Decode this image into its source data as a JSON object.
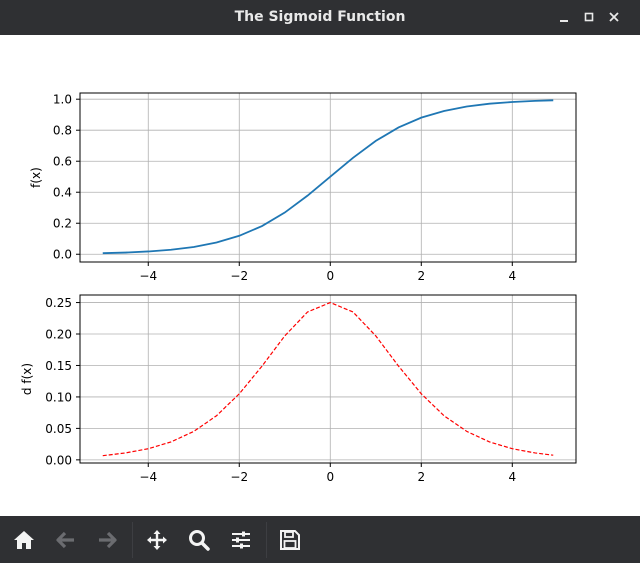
{
  "window": {
    "title": "The Sigmoid Function",
    "minimize_icon": "minimize-icon",
    "maximize_icon": "maximize-icon",
    "close_icon": "close-icon"
  },
  "toolbar": {
    "buttons": [
      {
        "name": "home-button",
        "icon": "home-icon"
      },
      {
        "name": "back-button",
        "icon": "arrow-left-icon"
      },
      {
        "name": "forward-button",
        "icon": "arrow-right-icon"
      },
      {
        "name": "pan-button",
        "icon": "move-icon"
      },
      {
        "name": "zoom-button",
        "icon": "magnifier-icon"
      },
      {
        "name": "configure-subplots-button",
        "icon": "sliders-icon"
      },
      {
        "name": "save-button",
        "icon": "floppy-disk-icon"
      }
    ],
    "colors": {
      "background": "#2f3033",
      "icon": "#f4f4f4",
      "icon_disabled": "#6b6c70"
    }
  },
  "chart_data": [
    {
      "type": "line",
      "title": "",
      "xlabel": "",
      "ylabel": "f(x)",
      "xlim": [
        -5.5,
        5.4
      ],
      "ylim": [
        -0.05,
        1.04
      ],
      "xticks": [
        "−4",
        "−2",
        "0",
        "2",
        "4"
      ],
      "yticks": [
        "0.0",
        "0.2",
        "0.4",
        "0.6",
        "0.8",
        "1.0"
      ],
      "grid": true,
      "series": [
        {
          "line_style": "solid",
          "color": "#1f77b4",
          "x": [
            -5,
            -4.5,
            -4,
            -3.5,
            -3,
            -2.5,
            -2,
            -1.5,
            -1,
            -0.5,
            0,
            0.5,
            1,
            1.5,
            2,
            2.5,
            3,
            3.5,
            4,
            4.5,
            4.9
          ],
          "y": [
            0.0067,
            0.011,
            0.018,
            0.029,
            0.047,
            0.076,
            0.119,
            0.182,
            0.269,
            0.378,
            0.5,
            0.622,
            0.731,
            0.818,
            0.881,
            0.924,
            0.953,
            0.971,
            0.982,
            0.989,
            0.993
          ]
        }
      ]
    },
    {
      "type": "line",
      "title": "",
      "xlabel": "",
      "ylabel": "d f(x)",
      "xlim": [
        -5.5,
        5.4
      ],
      "ylim": [
        -0.005,
        0.262
      ],
      "xticks": [
        "−4",
        "−2",
        "0",
        "2",
        "4"
      ],
      "yticks": [
        "0.00",
        "0.05",
        "0.10",
        "0.15",
        "0.20",
        "0.25"
      ],
      "grid": true,
      "series": [
        {
          "line_style": "dashed",
          "color": "#ff0000",
          "x": [
            -5,
            -4.5,
            -4,
            -3.5,
            -3,
            -2.5,
            -2,
            -1.5,
            -1,
            -0.5,
            0,
            0.5,
            1,
            1.5,
            2,
            2.5,
            3,
            3.5,
            4,
            4.5,
            4.9
          ],
          "y": [
            0.0066,
            0.011,
            0.0177,
            0.0285,
            0.0452,
            0.0701,
            0.105,
            0.149,
            0.197,
            0.235,
            0.25,
            0.235,
            0.197,
            0.149,
            0.105,
            0.0701,
            0.0452,
            0.0285,
            0.0177,
            0.011,
            0.0074
          ]
        }
      ]
    }
  ]
}
